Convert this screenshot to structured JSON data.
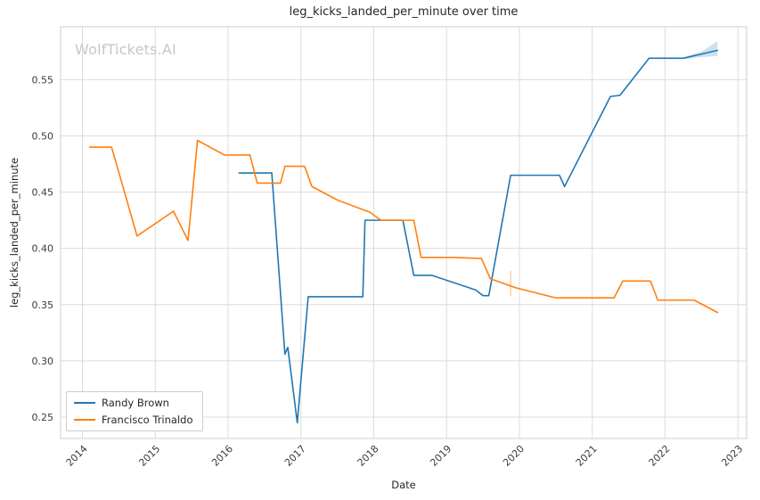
{
  "title": "leg_kicks_landed_per_minute over time",
  "watermark": "WolfTickets.AI",
  "axes": {
    "x_label": "Date",
    "y_label": "leg_kicks_landed_per_minute"
  },
  "legend": {
    "items": [
      {
        "label": "Randy Brown",
        "color": "#1f77b4"
      },
      {
        "label": "Francisco Trinaldo",
        "color": "#ff7f0e"
      }
    ]
  },
  "chart_data": {
    "type": "line",
    "title": "leg_kicks_landed_per_minute over time",
    "xlabel": "Date",
    "ylabel": "leg_kicks_landed_per_minute",
    "xlim": [
      2013.7,
      2023.12
    ],
    "ylim": [
      0.231,
      0.597
    ],
    "x_ticks": [
      2014,
      2015,
      2016,
      2017,
      2018,
      2019,
      2020,
      2021,
      2022,
      2023
    ],
    "y_ticks": [
      0.25,
      0.3,
      0.35,
      0.4,
      0.45,
      0.5,
      0.55
    ],
    "grid": true,
    "grid_color": "#dcdcdc",
    "spine_color": "#cccccc",
    "legend_position": "lower left",
    "series": [
      {
        "name": "Randy Brown",
        "color": "#1f77b4",
        "x": [
          2016.15,
          2016.6,
          2016.78,
          2016.82,
          2016.95,
          2017.1,
          2017.85,
          2017.88,
          2018.4,
          2018.55,
          2018.8,
          2019.4,
          2019.5,
          2019.58,
          2019.88,
          2020.55,
          2020.62,
          2021.25,
          2021.38,
          2021.78,
          2022.25,
          2022.72
        ],
        "y": [
          0.467,
          0.467,
          0.306,
          0.312,
          0.245,
          0.357,
          0.357,
          0.425,
          0.425,
          0.376,
          0.376,
          0.363,
          0.358,
          0.358,
          0.465,
          0.465,
          0.455,
          0.535,
          0.536,
          0.569,
          0.569,
          0.576
        ]
      },
      {
        "name": "Francisco Trinaldo",
        "color": "#ff7f0e",
        "x": [
          2014.1,
          2014.4,
          2014.75,
          2015.25,
          2015.45,
          2015.58,
          2015.95,
          2016.3,
          2016.4,
          2016.72,
          2016.78,
          2017.05,
          2017.15,
          2017.5,
          2017.95,
          2018.1,
          2018.55,
          2018.65,
          2019.1,
          2019.48,
          2019.6,
          2019.95,
          2020.5,
          2021.3,
          2021.42,
          2021.8,
          2021.9,
          2022.4,
          2022.72
        ],
        "y": [
          0.49,
          0.49,
          0.411,
          0.433,
          0.407,
          0.496,
          0.483,
          0.483,
          0.458,
          0.458,
          0.473,
          0.473,
          0.455,
          0.443,
          0.432,
          0.425,
          0.425,
          0.392,
          0.392,
          0.391,
          0.373,
          0.365,
          0.356,
          0.356,
          0.371,
          0.371,
          0.354,
          0.354,
          0.343
        ]
      }
    ],
    "band": {
      "series": "Randy Brown",
      "color": "#1f77b4",
      "opacity": 0.22,
      "x": [
        2022.25,
        2022.5,
        2022.72
      ],
      "upper": [
        0.57,
        0.575,
        0.584
      ],
      "lower": [
        0.568,
        0.57,
        0.571
      ]
    },
    "errorbar": {
      "series": "Francisco Trinaldo",
      "color": "#ff7f0e",
      "opacity": 0.45,
      "x": 2019.88,
      "y0": 0.358,
      "y1": 0.38
    }
  }
}
